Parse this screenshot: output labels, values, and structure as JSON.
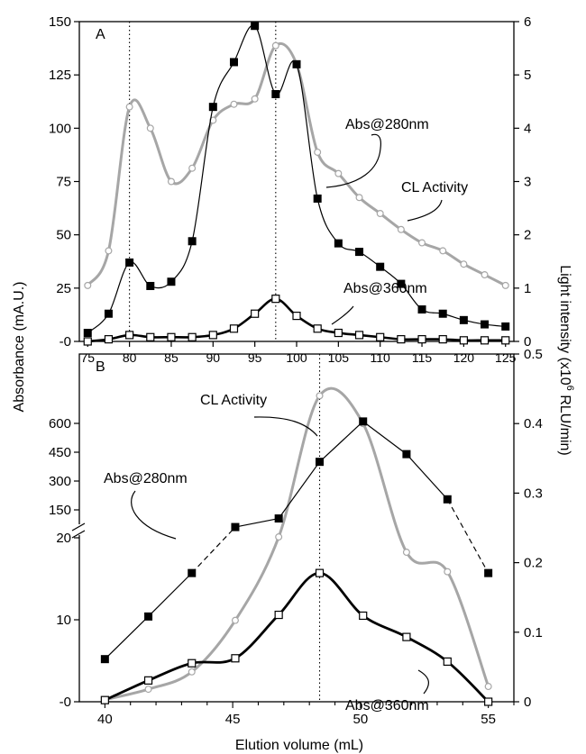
{
  "chart_data": [
    {
      "panel_label": "A",
      "type": "line",
      "xlim": [
        74,
        126
      ],
      "x_ticks": [
        75,
        80,
        85,
        90,
        95,
        100,
        105,
        110,
        115,
        120,
        125
      ],
      "y_left_lim": [
        0,
        150
      ],
      "y_left_ticks": [
        0,
        25,
        50,
        75,
        100,
        125,
        150
      ],
      "y_left_tick_labels": [
        "-0",
        "25",
        "50",
        "75",
        "100",
        "125",
        "150"
      ],
      "y_right_lim": [
        0,
        6
      ],
      "y_right_ticks": [
        0,
        1,
        2,
        3,
        4,
        5,
        6
      ],
      "grid": false,
      "vlines": [
        80,
        97.5
      ],
      "series": [
        {
          "name": "CL Activity",
          "axis": "right",
          "color": "#a6a6a6",
          "marker": "open-circle",
          "x": [
            75,
            77.5,
            80,
            82.5,
            85,
            87.5,
            90,
            92.5,
            95,
            97.5,
            100,
            102.5,
            105,
            107.5,
            110,
            112.5,
            115,
            117.5,
            120,
            122.5,
            125
          ],
          "y": [
            1.05,
            1.7,
            4.4,
            4.0,
            3.0,
            3.25,
            4.15,
            4.45,
            4.55,
            5.55,
            5.2,
            3.55,
            3.15,
            2.7,
            2.4,
            2.1,
            1.85,
            1.7,
            1.45,
            1.25,
            1.05
          ]
        },
        {
          "name": "Abs@280nm",
          "axis": "left",
          "color": "#000000",
          "marker": "filled-square",
          "x": [
            75,
            77.5,
            80,
            82.5,
            85,
            87.5,
            90,
            92.5,
            95,
            97.5,
            100,
            102.5,
            105,
            107.5,
            110,
            112.5,
            115,
            117.5,
            120,
            122.5,
            125
          ],
          "y": [
            4,
            13,
            37,
            26,
            28,
            47,
            110,
            131,
            148,
            116,
            130,
            67,
            46,
            42,
            35,
            27,
            15,
            13,
            10,
            8,
            7
          ]
        },
        {
          "name": "Abs@360nm",
          "axis": "left",
          "color": "#000000",
          "marker": "open-square",
          "x": [
            75,
            77.5,
            80,
            82.5,
            85,
            87.5,
            90,
            92.5,
            95,
            97.5,
            100,
            102.5,
            105,
            107.5,
            110,
            112.5,
            115,
            117.5,
            120,
            122.5,
            125
          ],
          "y": [
            0,
            1,
            3,
            2,
            2,
            2,
            3,
            6,
            13,
            20,
            12,
            6,
            4,
            3,
            2,
            1,
            1,
            1,
            0.5,
            0.5,
            0.5
          ]
        }
      ],
      "annotations": [
        "Abs@280nm",
        "CL Activity",
        "Abs@360nm"
      ]
    },
    {
      "panel_label": "B",
      "type": "line",
      "xlim": [
        39,
        56
      ],
      "x_ticks": [
        40,
        45,
        50,
        55
      ],
      "y_left_ticks_lower": [
        0,
        10,
        20
      ],
      "y_left_tick_labels_lower": [
        "-0",
        "10",
        "20"
      ],
      "y_left_ticks_upper": [
        150,
        300,
        450,
        600
      ],
      "y_left_tick_labels_upper": [
        "150",
        "300",
        "450",
        "600"
      ],
      "y_left_break": "broken axis: linear 0–20 below the break, compressed 150–600 above",
      "y_right_lim": [
        0,
        0.5
      ],
      "y_right_ticks": [
        0,
        0.1,
        0.2,
        0.3,
        0.4,
        0.5
      ],
      "y_right_tick_labels": [
        "0",
        "0.1",
        "0.2",
        "0.3",
        "0.4",
        "0.5"
      ],
      "grid": false,
      "vlines": [
        48.4
      ],
      "series": [
        {
          "name": "CL Activity",
          "axis": "right",
          "color": "#a6a6a6",
          "marker": "open-circle",
          "x": [
            40,
            41.7,
            43.4,
            45.1,
            46.8,
            48.4,
            50.1,
            51.8,
            53.4,
            55
          ],
          "y": [
            0.003,
            0.018,
            0.043,
            0.117,
            0.237,
            0.44,
            0.4,
            0.215,
            0.187,
            0.022
          ]
        },
        {
          "name": "Abs@280nm",
          "axis": "left",
          "color": "#000000",
          "marker": "filled-square",
          "x": [
            40,
            41.7,
            43.4,
            45.1,
            46.8,
            48.4,
            50.1,
            51.8,
            53.4,
            55
          ],
          "y": [
            5.2,
            10.4,
            15.7,
            70,
            110,
            400,
            610,
            440,
            205,
            15.7
          ],
          "dashed_segments": [
            [
              43.4,
              45.1
            ],
            [
              53.4,
              55
            ]
          ]
        },
        {
          "name": "Abs@360nm",
          "axis": "left",
          "color": "#000000",
          "marker": "open-square",
          "x": [
            40,
            41.7,
            43.4,
            45.1,
            46.8,
            48.4,
            50.1,
            51.8,
            53.4,
            55
          ],
          "y": [
            0.2,
            2.6,
            4.7,
            5.3,
            10.6,
            15.7,
            10.5,
            7.9,
            4.9,
            0
          ]
        }
      ],
      "annotations": [
        "CL Activity",
        "Abs@280nm",
        "Abs@360nm"
      ]
    }
  ],
  "labels": {
    "panel_a": "A",
    "panel_b": "B",
    "y_left": "Absorbance (mA.U.)",
    "y_right_prefix": "Light intensity (x10",
    "y_right_exp": "6",
    "y_right_suffix": " RLU/min)",
    "x_axis": "Elution volume (mL)",
    "a_abs280": "Abs@280nm",
    "a_cl": "CL Activity",
    "a_abs360": "Abs@360nm",
    "b_cl": "CL Activity",
    "b_abs280": "Abs@280nm",
    "b_abs360": "Abs@360nm"
  }
}
